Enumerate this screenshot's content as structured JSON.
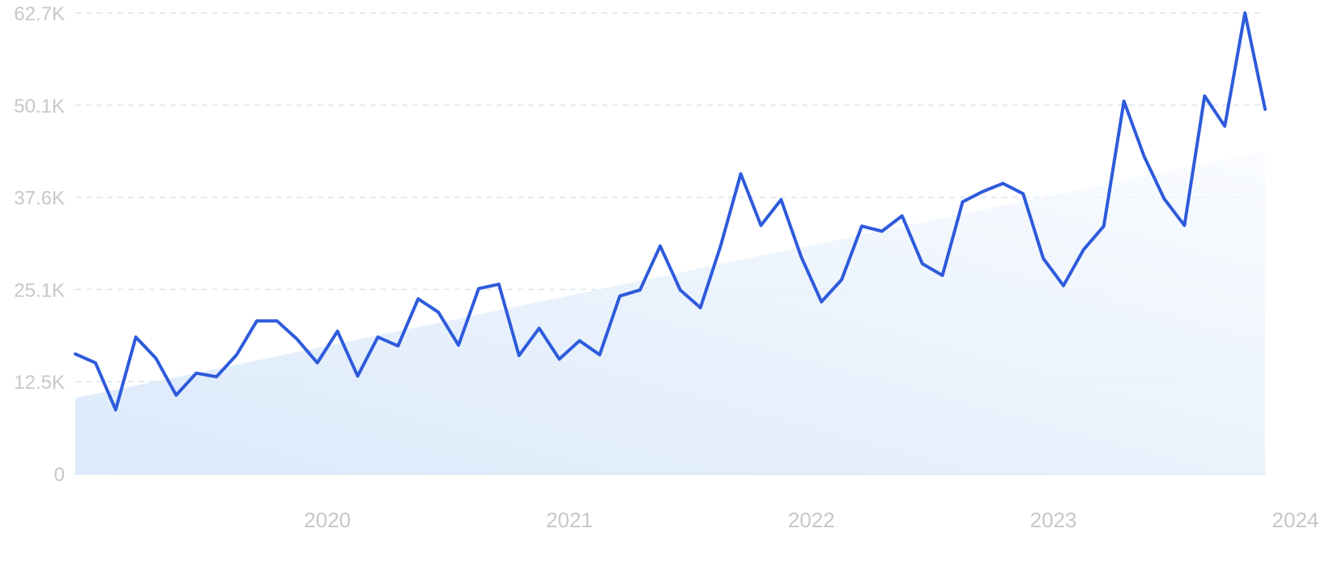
{
  "chart_data": {
    "type": "line",
    "title": "",
    "xlabel": "",
    "ylabel": "",
    "ylim": [
      0,
      62700
    ],
    "yticks": [
      {
        "value": 0,
        "label": "0"
      },
      {
        "value": 12540,
        "label": "12.5K"
      },
      {
        "value": 25080,
        "label": "25.1K"
      },
      {
        "value": 37620,
        "label": "37.6K"
      },
      {
        "value": 50160,
        "label": "50.1K"
      },
      {
        "value": 62700,
        "label": "62.7K"
      }
    ],
    "xticks": [
      "2020",
      "2021",
      "2022",
      "2023",
      "2024"
    ],
    "x_range": [
      "2019-06",
      "2024-05"
    ],
    "grid": "horizontal dashed",
    "colors": {
      "line": "#2e5bdb",
      "trend_fill": "#dbe9fa",
      "grid": "#d6e6f2",
      "baseline": "#cfe3f5",
      "tick_text": "#c4c8cc"
    },
    "trend": {
      "start": 10300,
      "end": 43900
    },
    "series": [
      {
        "x": [
          "2019-06",
          "2019-07",
          "2019-08",
          "2019-09",
          "2019-10",
          "2019-11",
          "2019-12",
          "2020-01",
          "2020-02",
          "2020-03",
          "2020-04",
          "2020-05",
          "2020-06",
          "2020-07",
          "2020-08",
          "2020-09",
          "2020-10",
          "2020-11",
          "2020-12",
          "2021-01",
          "2021-02",
          "2021-03",
          "2021-04",
          "2021-05",
          "2021-06",
          "2021-07",
          "2021-08",
          "2021-09",
          "2021-10",
          "2021-11",
          "2021-12",
          "2022-01",
          "2022-02",
          "2022-03",
          "2022-04",
          "2022-05",
          "2022-06",
          "2022-07",
          "2022-08",
          "2022-09",
          "2022-10",
          "2022-11",
          "2022-12",
          "2023-01",
          "2023-02",
          "2023-03",
          "2023-04",
          "2023-05",
          "2023-06",
          "2023-07",
          "2023-08",
          "2023-09",
          "2023-10",
          "2023-11",
          "2023-12",
          "2024-01",
          "2024-02",
          "2024-03",
          "2024-04",
          "2024-05"
        ],
        "values": [
          16300,
          15100,
          8700,
          18600,
          15700,
          10700,
          13700,
          13200,
          16200,
          20800,
          20800,
          18300,
          15100,
          19400,
          13300,
          18600,
          17400,
          23800,
          22000,
          17500,
          25200,
          25800,
          16100,
          19800,
          15600,
          18100,
          16200,
          24200,
          25000,
          31000,
          25000,
          22600,
          31000,
          40800,
          33800,
          37300,
          29500,
          23400,
          26400,
          33700,
          33000,
          35100,
          28600,
          27000,
          37000,
          38400,
          39500,
          38100,
          29300,
          25600,
          30500,
          33700,
          50700,
          43200,
          37400,
          33800,
          51400,
          47300,
          62700,
          49600
        ]
      }
    ]
  }
}
